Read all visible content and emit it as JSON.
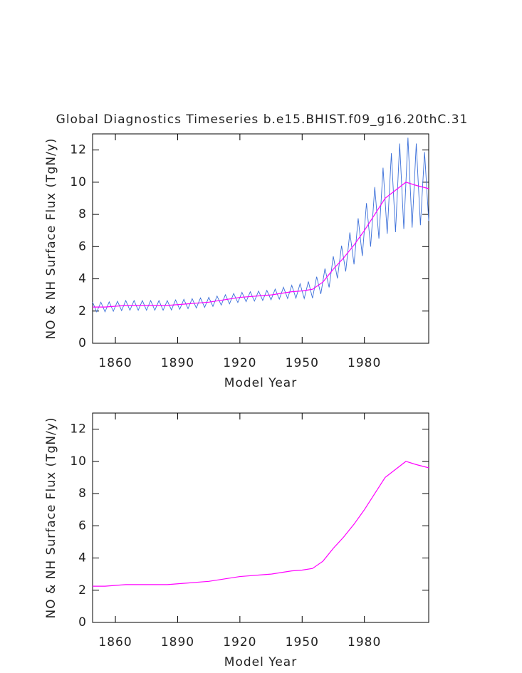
{
  "chart_data": [
    {
      "type": "line",
      "title": "Global Diagnostics Timeseries b.e15.BHIST.f09_g16.20thC.31",
      "y_label": "NO & NH Surface Flux (TgN/y)",
      "x_label": "Model Year",
      "xlim": [
        1849,
        2011
      ],
      "ylim": [
        0,
        13
      ],
      "xticks": [
        1860,
        1890,
        1920,
        1950,
        1980
      ],
      "yticks": [
        0,
        2,
        4,
        6,
        8,
        10,
        12
      ],
      "x": [
        1849,
        1855,
        1860,
        1865,
        1870,
        1875,
        1880,
        1885,
        1890,
        1895,
        1900,
        1905,
        1910,
        1915,
        1920,
        1925,
        1930,
        1935,
        1940,
        1945,
        1950,
        1955,
        1960,
        1965,
        1970,
        1975,
        1980,
        1985,
        1990,
        1995,
        2000,
        2005,
        2011
      ],
      "series": [
        {
          "color": "#3b6fd9",
          "x": [
            1849,
            1851,
            1853,
            1855,
            1857,
            1859,
            1861,
            1863,
            1865,
            1867,
            1869,
            1871,
            1873,
            1875,
            1877,
            1879,
            1881,
            1883,
            1885,
            1887,
            1889,
            1891,
            1893,
            1895,
            1897,
            1899,
            1901,
            1903,
            1905,
            1907,
            1909,
            1911,
            1913,
            1915,
            1917,
            1919,
            1921,
            1923,
            1925,
            1927,
            1929,
            1931,
            1933,
            1935,
            1937,
            1939,
            1941,
            1943,
            1945,
            1947,
            1949,
            1951,
            1953,
            1955,
            1957,
            1959,
            1961,
            1963,
            1965,
            1967,
            1969,
            1971,
            1973,
            1975,
            1977,
            1979,
            1981,
            1983,
            1985,
            1987,
            1989,
            1991,
            1993,
            1995,
            1997,
            1999,
            2001,
            2003,
            2005,
            2007,
            2009,
            2011
          ],
          "values": [
            2.55,
            1.95,
            2.55,
            1.95,
            2.57,
            1.99,
            2.61,
            2.03,
            2.65,
            2.05,
            2.65,
            2.05,
            2.65,
            2.05,
            2.65,
            2.05,
            2.65,
            2.05,
            2.65,
            2.07,
            2.69,
            2.11,
            2.73,
            2.15,
            2.77,
            2.19,
            2.81,
            2.23,
            2.85,
            2.29,
            2.93,
            2.37,
            3.01,
            2.45,
            3.09,
            2.53,
            3.16,
            2.58,
            3.2,
            2.62,
            3.24,
            2.66,
            3.28,
            2.7,
            3.36,
            2.74,
            3.48,
            2.78,
            3.6,
            2.8,
            3.69,
            2.78,
            3.83,
            2.8,
            4.13,
            3.06,
            4.64,
            3.47,
            5.4,
            4.03,
            6.06,
            4.46,
            6.88,
            4.9,
            7.76,
            5.42,
            8.7,
            6.0,
            9.7,
            6.5,
            10.9,
            6.8,
            11.8,
            6.9,
            12.4,
            7.1,
            12.76,
            7.18,
            12.4,
            7.33,
            11.87,
            7.6
          ]
        },
        {
          "color": "#ff00ff",
          "values": [
            2.25,
            2.25,
            2.3,
            2.35,
            2.35,
            2.35,
            2.35,
            2.35,
            2.4,
            2.45,
            2.5,
            2.55,
            2.65,
            2.75,
            2.85,
            2.9,
            2.95,
            3.0,
            3.1,
            3.2,
            3.25,
            3.35,
            3.8,
            4.6,
            5.3,
            6.1,
            7.0,
            8.0,
            9.0,
            9.5,
            10.0,
            9.8,
            9.6
          ]
        }
      ]
    },
    {
      "type": "line",
      "y_label": "NO & NH Surface Flux (TgN/y)",
      "x_label": "Model Year",
      "xlim": [
        1849,
        2011
      ],
      "ylim": [
        0,
        13
      ],
      "xticks": [
        1860,
        1890,
        1920,
        1950,
        1980
      ],
      "yticks": [
        0,
        2,
        4,
        6,
        8,
        10,
        12
      ],
      "x": [
        1849,
        1855,
        1860,
        1865,
        1870,
        1875,
        1880,
        1885,
        1890,
        1895,
        1900,
        1905,
        1910,
        1915,
        1920,
        1925,
        1930,
        1935,
        1940,
        1945,
        1950,
        1955,
        1960,
        1965,
        1970,
        1975,
        1980,
        1985,
        1990,
        1995,
        2000,
        2005,
        2011
      ],
      "series": [
        {
          "color": "#ff00ff",
          "values": [
            2.25,
            2.25,
            2.3,
            2.35,
            2.35,
            2.35,
            2.35,
            2.35,
            2.4,
            2.45,
            2.5,
            2.55,
            2.65,
            2.75,
            2.85,
            2.9,
            2.95,
            3.0,
            3.1,
            3.2,
            3.25,
            3.35,
            3.8,
            4.6,
            5.3,
            6.1,
            7.0,
            8.0,
            9.0,
            9.5,
            10.0,
            9.8,
            9.6
          ]
        }
      ]
    }
  ]
}
